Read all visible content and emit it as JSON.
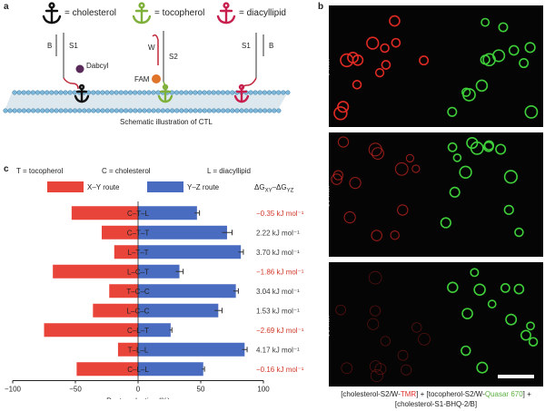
{
  "panels": {
    "a": "a",
    "b": "b",
    "c": "c"
  },
  "panel_a": {
    "legend": [
      {
        "text": "= cholesterol",
        "color": "#111111",
        "icon": "anchor-icon"
      },
      {
        "text": "= tocopherol",
        "color": "#7fb03a",
        "icon": "anchor-icon"
      },
      {
        "text": "= diacyllipid",
        "color": "#c8204e",
        "icon": "anchor-icon"
      }
    ],
    "labels": {
      "b_left": "B",
      "s1_left": "S1",
      "dabcyl": "Dabcyl",
      "w": "W",
      "s2": "S2",
      "fam": "FAM",
      "s1_right": "S1",
      "b_right": "B"
    },
    "caption": "Schematic illustration of CTL"
  },
  "panel_c": {
    "header": {
      "t_def": "T = tocopherol",
      "c_def": "C = cholesterol",
      "l_def": "L = diacyllipid",
      "route_xy": "X–Y route",
      "route_yz": "Y–Z route",
      "delta_label": "ΔG",
      "delta_sub1": "XY",
      "delta_mid": "–ΔG",
      "delta_sub2": "YZ"
    },
    "colors": {
      "xy": "#e8443a",
      "yz": "#4a6cc0",
      "neg": "#d23a2a",
      "pos": "#3a3a3a"
    }
  },
  "chart_data": {
    "type": "bar",
    "orientation": "horizontal-diverging",
    "categories": [
      "C–T–L",
      "C–T–T",
      "L–T–T",
      "L–C–T",
      "T–C–C",
      "L–C–C",
      "C–L–T",
      "T–L–L",
      "C–L–L"
    ],
    "series": [
      {
        "name": "X–Y route",
        "values": [
          -53,
          -29,
          -19,
          -68,
          -23,
          -36,
          -75,
          -16,
          -49
        ]
      },
      {
        "name": "Y–Z route",
        "values": [
          47,
          71,
          82,
          33,
          78,
          64,
          26,
          85,
          52
        ]
      }
    ],
    "errors": [
      2,
      4,
      2,
      3,
      2,
      3,
      1,
      2,
      1
    ],
    "delta_g": [
      "−0.35 kJ mol⁻¹",
      "2.22 kJ mol⁻¹",
      "3.70 kJ mol⁻¹",
      "−1.86 kJ mol⁻¹",
      "3.04 kJ mol⁻¹",
      "1.53 kJ mol⁻¹",
      "−2.69 kJ mol⁻¹",
      "4.17 kJ mol⁻¹",
      "−0.16 kJ mol⁻¹"
    ],
    "delta_sign": [
      -1,
      1,
      1,
      -1,
      1,
      1,
      -1,
      1,
      -1
    ],
    "xlabel": "Route selection (%)",
    "xlim": [
      -100,
      100
    ],
    "xticks": [
      -100,
      -50,
      0,
      50,
      100
    ],
    "xtick_labels": [
      "−100",
      "−50",
      "0",
      "50",
      "100"
    ],
    "grid": false
  },
  "panel_b": {
    "times": [
      "0 min",
      "30 min",
      "90 min"
    ],
    "caption": [
      {
        "text": "[cholesterol-S2/W-",
        "color": "#222222"
      },
      {
        "text": "TMR",
        "color": "#e0302a"
      },
      {
        "text": "] + [tocopherol-S2/W-",
        "color": "#222222"
      },
      {
        "text": "Quasar 670",
        "color": "#5cb040"
      },
      {
        "text": "] + [cholesterol-S1-BHQ-2/B]",
        "color": "#222222"
      }
    ],
    "colors": {
      "red": "#e02a24",
      "green": "#3fcf3a"
    }
  }
}
